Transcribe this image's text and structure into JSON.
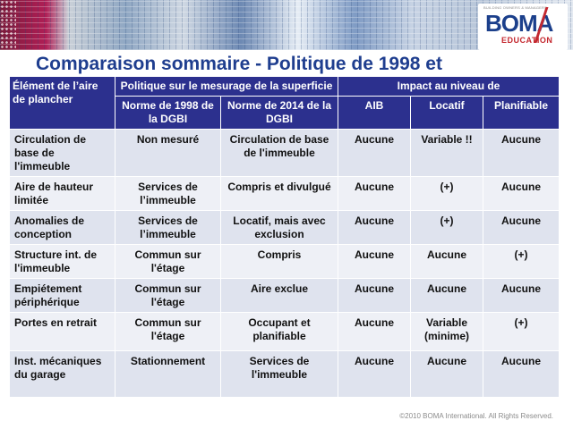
{
  "title": "Comparaison sommaire - Politique de 1998 et",
  "logo": {
    "name": "BOMA",
    "sub": "EDUCATION",
    "tagline": "BUILDING OWNERS & MANAGERS"
  },
  "table": {
    "header_element": "Élément de l’aire de plancher",
    "header_politique": "Politique sur le mesurage de la superficie",
    "header_impact": "Impact au niveau de",
    "subheaders": [
      "Norme de 1998 de la DGBI",
      "Norme de 2014 de la DGBI",
      "AIB",
      "Locatif",
      "Planifiable"
    ],
    "rows": [
      {
        "element": "Circulation de base de l'immeuble",
        "n1998": "Non mesuré",
        "n2014": "Circulation de base de l'immeuble",
        "aib": "Aucune",
        "locatif": "Variable !!",
        "planifiable": "Aucune"
      },
      {
        "element": "Aire de hauteur limitée",
        "n1998": "Services de l’immeuble",
        "n2014": "Compris et divulgué",
        "aib": "Aucune",
        "locatif": "(+)",
        "planifiable": "Aucune"
      },
      {
        "element": "Anomalies de conception",
        "n1998": "Services de l’immeuble",
        "n2014": "Locatif, mais avec exclusion",
        "aib": "Aucune",
        "locatif": "(+)",
        "planifiable": "Aucune"
      },
      {
        "element": "Structure int. de l'immeuble",
        "n1998": "Commun sur l'étage",
        "n2014": "Compris",
        "aib": "Aucune",
        "locatif": "Aucune",
        "planifiable": "(+)"
      },
      {
        "element": "Empiétement périphérique",
        "n1998": "Commun sur l'étage",
        "n2014": "Aire exclue",
        "aib": "Aucune",
        "locatif": "Aucune",
        "planifiable": "Aucune"
      },
      {
        "element": "Portes en retrait",
        "n1998": "Commun sur l'étage",
        "n2014": "Occupant et planifiable",
        "aib": "Aucune",
        "locatif": "Variable (minime)",
        "planifiable": "(+)"
      },
      {
        "element": "Inst. mécaniques du garage",
        "n1998": "Stationnement",
        "n2014": "Services de l'immeuble",
        "aib": "Aucune",
        "locatif": "Aucune",
        "planifiable": "Aucune"
      }
    ]
  },
  "footer": "©2010 BOMA International. All Rights Reserved.",
  "colors": {
    "header_bg": "#2c308e",
    "title": "#1f3e8f",
    "row_odd": "#dfe3ee",
    "row_even": "#eef0f6",
    "accent_red": "#c4282f"
  }
}
